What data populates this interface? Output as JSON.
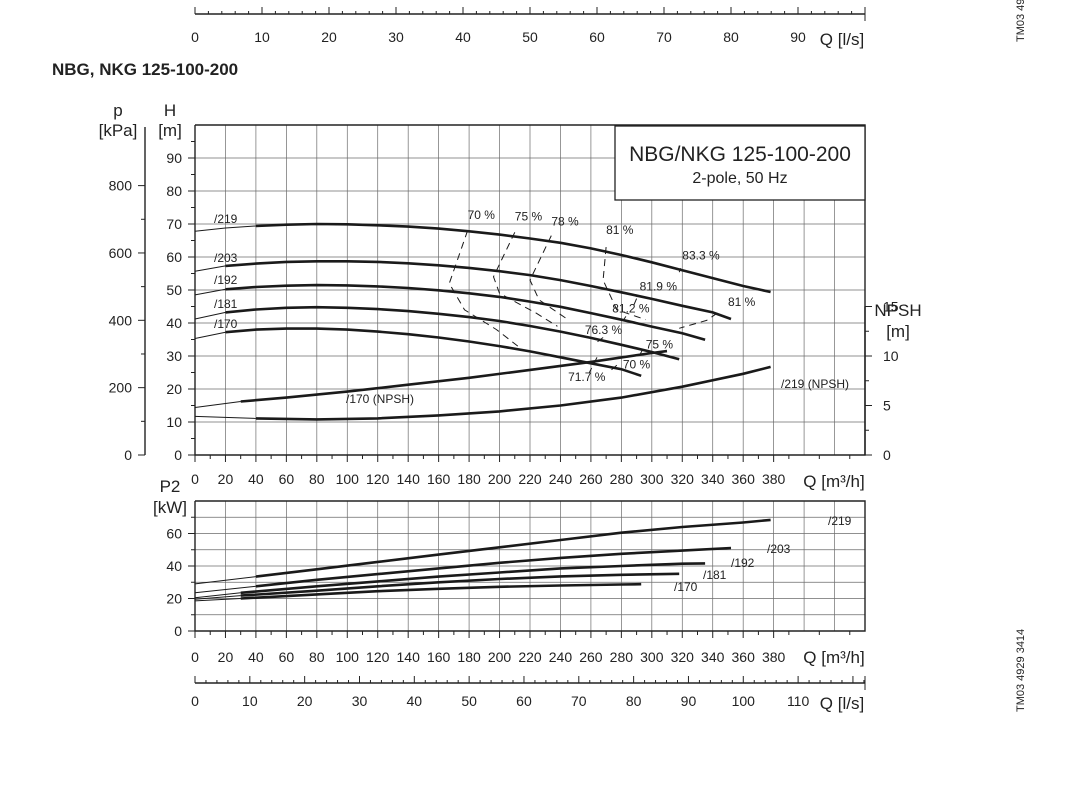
{
  "model_title": "NBG, NKG 125-100-200",
  "side_code_top": "TM03 49",
  "side_code": "TM03 4929 3414",
  "info_box": {
    "line1": "NBG/NKG 125-100-200",
    "line2": "2-pole, 50 Hz"
  },
  "colors": {
    "curve": "#1a1a1a",
    "grid": "#6b6b6b"
  },
  "chart_data": [
    {
      "id": "top_flow_scale",
      "type": "line",
      "xlabel": "Q [l/s]",
      "xlim": [
        0,
        100
      ],
      "x_ticks": [
        0,
        10,
        20,
        30,
        40,
        50,
        60,
        70,
        80,
        90
      ]
    },
    {
      "id": "head",
      "type": "line",
      "xlabel": "Q [m³/h]",
      "xlim": [
        0,
        440
      ],
      "x_ticks": [
        0,
        20,
        40,
        60,
        80,
        100,
        120,
        140,
        160,
        180,
        200,
        220,
        240,
        260,
        280,
        300,
        320,
        340,
        360,
        380
      ],
      "ylabel": "H [m]",
      "ylim": [
        0,
        100
      ],
      "y_ticks": [
        0,
        10,
        20,
        30,
        40,
        50,
        60,
        70,
        80,
        90
      ],
      "secondary_ylabel_p": [
        "p",
        "[kPa]"
      ],
      "p_ticks": [
        0,
        200,
        400,
        600,
        800
      ],
      "npsh_label": [
        "NPSH",
        "[m]"
      ],
      "npsh_ticks": [
        0,
        5,
        10,
        15
      ],
      "npsh_range": [
        0,
        15
      ],
      "grid": true,
      "series": [
        {
          "name": "/219",
          "thin_from": 0,
          "thick_from": 40,
          "points": [
            [
              0,
              67.8
            ],
            [
              20,
              68.8
            ],
            [
              40,
              69.4
            ],
            [
              60,
              69.8
            ],
            [
              80,
              70
            ],
            [
              100,
              69.9
            ],
            [
              120,
              69.6
            ],
            [
              140,
              69.2
            ],
            [
              160,
              68.6
            ],
            [
              180,
              67.8
            ],
            [
              200,
              66.8
            ],
            [
              220,
              65.6
            ],
            [
              240,
              64.3
            ],
            [
              260,
              62.6
            ],
            [
              280,
              60.6
            ],
            [
              300,
              58.4
            ],
            [
              320,
              56
            ],
            [
              340,
              53.6
            ],
            [
              360,
              51.2
            ],
            [
              378,
              49.4
            ]
          ]
        },
        {
          "name": "/203",
          "thin_from": 0,
          "thick_from": 20,
          "points": [
            [
              0,
              55.7
            ],
            [
              20,
              57.3
            ],
            [
              40,
              58
            ],
            [
              60,
              58.5
            ],
            [
              80,
              58.7
            ],
            [
              100,
              58.7
            ],
            [
              120,
              58.5
            ],
            [
              140,
              58.1
            ],
            [
              160,
              57.5
            ],
            [
              180,
              56.7
            ],
            [
              200,
              55.7
            ],
            [
              220,
              54.5
            ],
            [
              240,
              53
            ],
            [
              260,
              51.2
            ],
            [
              280,
              49.3
            ],
            [
              300,
              47.3
            ],
            [
              320,
              45.2
            ],
            [
              340,
              43.2
            ],
            [
              352,
              41.2
            ]
          ]
        },
        {
          "name": "/192",
          "thin_from": 0,
          "thick_from": 20,
          "points": [
            [
              0,
              48.5
            ],
            [
              20,
              50.2
            ],
            [
              40,
              50.9
            ],
            [
              60,
              51.3
            ],
            [
              80,
              51.5
            ],
            [
              100,
              51.4
            ],
            [
              120,
              51.1
            ],
            [
              140,
              50.6
            ],
            [
              160,
              49.9
            ],
            [
              180,
              49
            ],
            [
              200,
              47.9
            ],
            [
              220,
              46.5
            ],
            [
              240,
              44.9
            ],
            [
              260,
              43
            ],
            [
              280,
              41
            ],
            [
              300,
              38.9
            ],
            [
              320,
              36.9
            ],
            [
              335,
              34.9
            ]
          ]
        },
        {
          "name": "/181",
          "thin_from": 0,
          "thick_from": 20,
          "points": [
            [
              0,
              41.2
            ],
            [
              20,
              43.2
            ],
            [
              40,
              44.1
            ],
            [
              60,
              44.6
            ],
            [
              80,
              44.8
            ],
            [
              100,
              44.6
            ],
            [
              120,
              44.2
            ],
            [
              140,
              43.6
            ],
            [
              160,
              42.8
            ],
            [
              180,
              41.8
            ],
            [
              200,
              40.6
            ],
            [
              220,
              39.1
            ],
            [
              240,
              37.4
            ],
            [
              260,
              35.5
            ],
            [
              280,
              33.4
            ],
            [
              300,
              31.2
            ],
            [
              318,
              29
            ]
          ]
        },
        {
          "name": "/170",
          "thin_from": 0,
          "thick_from": 20,
          "points": [
            [
              0,
              35.3
            ],
            [
              20,
              37.2
            ],
            [
              40,
              38
            ],
            [
              60,
              38.3
            ],
            [
              80,
              38.3
            ],
            [
              100,
              38
            ],
            [
              120,
              37.4
            ],
            [
              140,
              36.6
            ],
            [
              160,
              35.6
            ],
            [
              180,
              34.4
            ],
            [
              200,
              33
            ],
            [
              220,
              31.4
            ],
            [
              240,
              29.6
            ],
            [
              260,
              27.8
            ],
            [
              280,
              26
            ],
            [
              293,
              24
            ]
          ]
        },
        {
          "name": "/170 (NPSH)",
          "npsh": true,
          "thin_from": 0,
          "thick_from": 30,
          "points": [
            [
              0,
              4.8
            ],
            [
              30,
              5.4
            ],
            [
              60,
              5.8
            ],
            [
              100,
              6.4
            ],
            [
              140,
              7.1
            ],
            [
              180,
              7.8
            ],
            [
              220,
              8.6
            ],
            [
              260,
              9.4
            ],
            [
              300,
              10.3
            ],
            [
              310,
              10.5
            ]
          ]
        },
        {
          "name": "/219 (NPSH)",
          "npsh": true,
          "thin_from": 0,
          "thick_from": 40,
          "points": [
            [
              0,
              3.9
            ],
            [
              40,
              3.7
            ],
            [
              80,
              3.6
            ],
            [
              120,
              3.7
            ],
            [
              160,
              4
            ],
            [
              200,
              4.4
            ],
            [
              240,
              5
            ],
            [
              280,
              5.8
            ],
            [
              320,
              6.9
            ],
            [
              360,
              8.2
            ],
            [
              378,
              8.9
            ]
          ]
        }
      ],
      "efficiency_lines": [
        {
          "label": "70 %",
          "label_at": [
            179,
            71.5
          ],
          "points": [
            [
              179,
              68
            ],
            [
              167,
              52
            ],
            [
              177,
              44
            ],
            [
              198,
              38
            ],
            [
              212,
              33
            ]
          ]
        },
        {
          "label": "75 %",
          "label_at": [
            210,
            71
          ],
          "points": [
            [
              210,
              67.5
            ],
            [
              196,
              54
            ],
            [
              200,
              49
            ],
            [
              224,
              43
            ],
            [
              238,
              39
            ]
          ]
        },
        {
          "label": "78 %",
          "label_at": [
            234,
            69.5
          ],
          "points": [
            [
              234,
              66.5
            ],
            [
              220,
              53
            ],
            [
              226,
              47
            ],
            [
              245,
              41
            ]
          ]
        },
        {
          "label": "81 %",
          "label_at": [
            270,
            67
          ],
          "points": [
            [
              270,
              63
            ],
            [
              268,
              53
            ],
            [
              277,
              44
            ],
            [
              296,
              41
            ]
          ]
        },
        {
          "label": "83.3 %",
          "label_at": [
            320,
            59.2
          ],
          "points": [
            [
              319,
              56.6
            ],
            [
              318,
              55.4
            ]
          ]
        },
        {
          "label": "81.9 %",
          "label_at": [
            292,
            49.8
          ],
          "points": [
            [
              290,
              47.4
            ],
            [
              288,
              45.2
            ]
          ]
        },
        {
          "label": "81.2 %",
          "label_at": [
            274,
            43.2
          ],
          "points": [
            [
              283,
              42
            ],
            [
              281,
              40.6
            ]
          ]
        },
        {
          "label": "81 %",
          "label_at": [
            350,
            45.2
          ],
          "points": [
            [
              343,
              43
            ],
            [
              336,
              40.8
            ],
            [
              318,
              38.4
            ]
          ]
        },
        {
          "label": "76.3 %",
          "label_at": [
            256,
            36.6
          ],
          "points": [
            [
              268,
              35.6
            ],
            [
              264,
              34.2
            ]
          ]
        },
        {
          "label": "75 %",
          "label_at": [
            296,
            32.2
          ],
          "points": [
            [
              294,
              32
            ],
            [
              292,
              30.2
            ]
          ]
        },
        {
          "label": "70 %",
          "label_at": [
            281,
            26.2
          ],
          "points": [
            [
              277,
              27.2
            ],
            [
              273,
              25.6
            ]
          ]
        },
        {
          "label": "71.7 %",
          "label_at": [
            245,
            22.4
          ],
          "points": [
            [
              264,
              29.6
            ],
            [
              259,
              25
            ]
          ]
        }
      ]
    },
    {
      "id": "power",
      "type": "line",
      "xlabel": "Q [m³/h]",
      "xlim": [
        0,
        440
      ],
      "x_ticks": [
        0,
        20,
        40,
        60,
        80,
        100,
        120,
        140,
        160,
        180,
        200,
        220,
        240,
        260,
        280,
        300,
        320,
        340,
        360,
        380
      ],
      "ylabel": "P2 [kW]",
      "ylabel_lines": [
        "P2",
        "[kW]"
      ],
      "ylim": [
        0,
        80
      ],
      "y_ticks": [
        0,
        20,
        40,
        60
      ],
      "grid": true,
      "series": [
        {
          "name": "/219",
          "thin_from": 0,
          "thick_from": 40,
          "points": [
            [
              0,
              29
            ],
            [
              40,
              33.5
            ],
            [
              80,
              38
            ],
            [
              120,
              42.5
            ],
            [
              160,
              47
            ],
            [
              200,
              51.5
            ],
            [
              240,
              56
            ],
            [
              280,
              60.5
            ],
            [
              320,
              64
            ],
            [
              360,
              66.8
            ],
            [
              378,
              68.4
            ]
          ]
        },
        {
          "name": "/203",
          "thin_from": 0,
          "thick_from": 40,
          "points": [
            [
              0,
              23.5
            ],
            [
              40,
              27.5
            ],
            [
              80,
              31.5
            ],
            [
              120,
              35
            ],
            [
              160,
              38.5
            ],
            [
              200,
              42
            ],
            [
              240,
              45
            ],
            [
              280,
              47.5
            ],
            [
              320,
              49.5
            ],
            [
              352,
              51.1
            ]
          ]
        },
        {
          "name": "/192",
          "thin_from": 0,
          "thick_from": 30,
          "points": [
            [
              0,
              20.5
            ],
            [
              30,
              23.5
            ],
            [
              80,
              27.5
            ],
            [
              120,
              30.5
            ],
            [
              160,
              33.5
            ],
            [
              200,
              36
            ],
            [
              240,
              38.5
            ],
            [
              280,
              40
            ],
            [
              320,
              41.4
            ],
            [
              335,
              41.6
            ]
          ]
        },
        {
          "name": "/181",
          "thin_from": 0,
          "thick_from": 30,
          "points": [
            [
              0,
              19.5
            ],
            [
              30,
              21.8
            ],
            [
              80,
              24.8
            ],
            [
              120,
              27.5
            ],
            [
              160,
              30
            ],
            [
              200,
              32
            ],
            [
              240,
              33.6
            ],
            [
              280,
              34.6
            ],
            [
              318,
              35.2
            ]
          ]
        },
        {
          "name": "/170",
          "thin_from": 0,
          "thick_from": 30,
          "points": [
            [
              0,
              18.5
            ],
            [
              30,
              20
            ],
            [
              80,
              22.5
            ],
            [
              120,
              24.5
            ],
            [
              160,
              26
            ],
            [
              200,
              27.2
            ],
            [
              240,
              28
            ],
            [
              280,
              28.6
            ],
            [
              293,
              28.8
            ]
          ]
        }
      ]
    },
    {
      "id": "bottom_flow_scale",
      "type": "line",
      "xlabel": "Q [l/s]",
      "xlim": [
        0,
        122.2
      ],
      "x_ticks": [
        0,
        10,
        20,
        30,
        40,
        50,
        60,
        70,
        80,
        90,
        100,
        110
      ]
    }
  ]
}
